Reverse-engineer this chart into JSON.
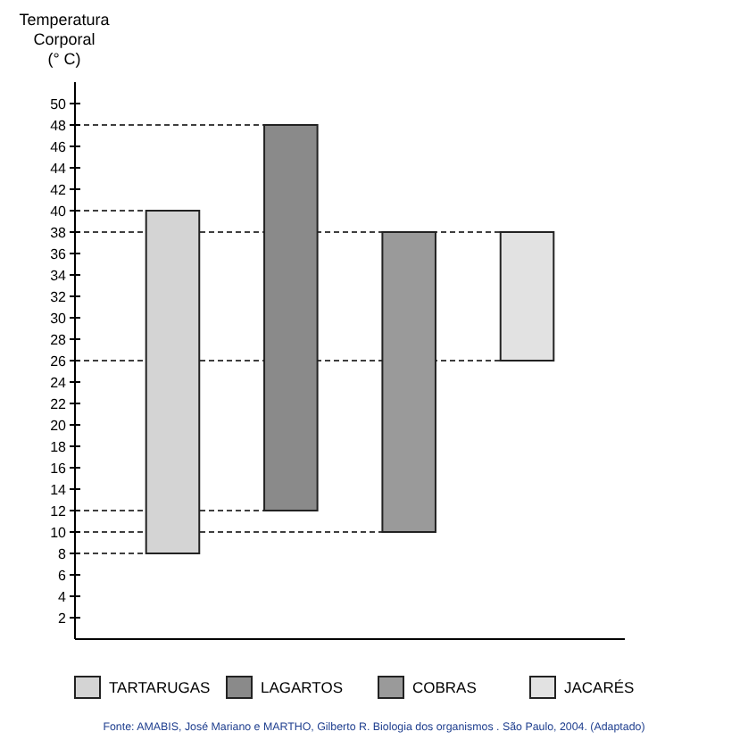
{
  "chart_data": {
    "type": "bar",
    "ylabel": "Temperatura\nCorporal\n(° C)",
    "categories": [
      "TARTARUGAS",
      "LAGARTOS",
      "COBRAS",
      "JACARÉS"
    ],
    "values": [
      32,
      36,
      28,
      12
    ],
    "base": [
      8,
      12,
      10,
      26
    ],
    "colors": [
      "#d4d4d4",
      "#8a8a8a",
      "#9a9a9a",
      "#e2e2e2"
    ],
    "ylim": [
      0,
      52
    ],
    "yticks": [
      2,
      4,
      6,
      8,
      10,
      12,
      14,
      16,
      18,
      20,
      22,
      24,
      26,
      28,
      30,
      32,
      34,
      36,
      38,
      40,
      42,
      44,
      46,
      48,
      50
    ],
    "tick_labels": "y",
    "ref_lines": [
      {
        "axis": "y",
        "value": 48,
        "line_style": "dashed"
      },
      {
        "axis": "y",
        "value": 40,
        "line_style": "dashed"
      },
      {
        "axis": "y",
        "value": 38,
        "line_style": "dashed"
      },
      {
        "axis": "y",
        "value": 26,
        "line_style": "dashed"
      },
      {
        "axis": "y",
        "value": 12,
        "line_style": "dashed"
      },
      {
        "axis": "y",
        "value": 10,
        "line_style": "dashed"
      },
      {
        "axis": "y",
        "value": 8,
        "line_style": "dashed"
      }
    ],
    "grid": false,
    "annotations": [
      "Fonte: AMABIS, José Mariano e MARTHO, Gilberto R. Biologia dos organismos . São Paulo, 2004. (Adaptado)"
    ]
  }
}
